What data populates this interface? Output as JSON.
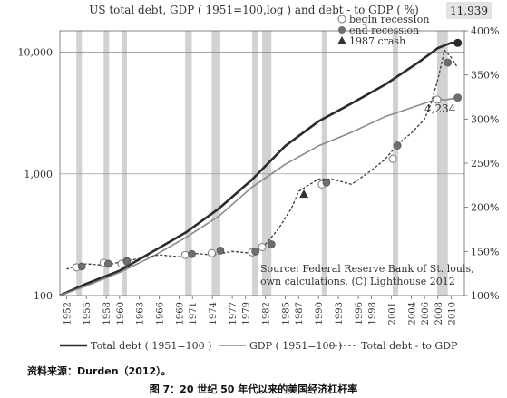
{
  "chart_data": {
    "type": "line",
    "title": "US total debt, GDP ( 1951=100,log ) and debt - to GDP ( %)",
    "peak_label": "11,939",
    "end_label": "4,234",
    "source_text": [
      "Source: Federal Reserve Bank of St. louls,",
      "own calculations. (C) Lighthouse 2012"
    ],
    "left_axis": {
      "scale": "log",
      "ylim": [
        100,
        15000
      ],
      "ticks": [
        100,
        1000,
        10000
      ],
      "tick_labels": [
        "100",
        "1,000",
        "10,000"
      ]
    },
    "right_axis": {
      "scale": "linear",
      "ylim": [
        100,
        400
      ],
      "ticks": [
        100,
        150,
        200,
        250,
        300,
        350,
        400
      ],
      "tick_labels": [
        "100%",
        "150%",
        "200%",
        "250%",
        "300%",
        "350%",
        "400%"
      ]
    },
    "x_axis": {
      "xlim": [
        1951,
        2012
      ],
      "ticks": [
        1952,
        1955,
        1958,
        1960,
        1963,
        1966,
        1969,
        1971,
        1974,
        1977,
        1979,
        1982,
        1985,
        1987,
        1990,
        1993,
        1996,
        1998,
        2001,
        2004,
        2006,
        2008,
        2010
      ]
    },
    "grid_lines_left": [
      1000,
      10000
    ],
    "recessions": [
      [
        1953.5,
        1954.3
      ],
      [
        1957.6,
        1958.3
      ],
      [
        1960.3,
        1961.1
      ],
      [
        1969.9,
        1970.9
      ],
      [
        1973.9,
        1975.2
      ],
      [
        1980.0,
        1980.5
      ],
      [
        1981.5,
        1982.9
      ],
      [
        1990.5,
        1991.2
      ],
      [
        2001.2,
        2001.9
      ],
      [
        2007.9,
        2009.5
      ]
    ],
    "series": [
      {
        "name": "Total debt ( 1951=100 )",
        "axis": "left",
        "style": "solid-thick",
        "color": "#2b2b2b",
        "x": [
          1951,
          1955,
          1960,
          1965,
          1970,
          1975,
          1980,
          1985,
          1990,
          1995,
          2000,
          2005,
          2008,
          2010,
          2011
        ],
        "y": [
          100,
          125,
          160,
          230,
          330,
          520,
          900,
          1700,
          2700,
          3800,
          5400,
          8200,
          10800,
          11939,
          11939
        ]
      },
      {
        "name": "GDP ( 1951=100 )",
        "axis": "left",
        "style": "solid-thin",
        "color": "#8a8a8a",
        "x": [
          1951,
          1955,
          1960,
          1965,
          1970,
          1975,
          1980,
          1985,
          1990,
          1995,
          2000,
          2005,
          2008,
          2009,
          2011
        ],
        "y": [
          100,
          120,
          155,
          210,
          300,
          450,
          780,
          1200,
          1700,
          2200,
          2950,
          3650,
          4150,
          4050,
          4234
        ]
      },
      {
        "name": "Total debt - to GDP",
        "axis": "right",
        "style": "dashed",
        "color": "#3a3a3a",
        "x": [
          1952,
          1955,
          1958,
          1960,
          1963,
          1966,
          1969,
          1971,
          1974,
          1977,
          1980,
          1982,
          1984,
          1986,
          1987,
          1990,
          1992,
          1995,
          1998,
          2000,
          2002,
          2004,
          2006,
          2007,
          2008,
          2009,
          2010,
          2011
        ],
        "y": [
          130,
          136,
          134,
          138,
          142,
          146,
          144,
          148,
          146,
          150,
          148,
          158,
          176,
          200,
          218,
          232,
          232,
          226,
          242,
          254,
          272,
          284,
          300,
          318,
          345,
          378,
          370,
          358
        ]
      }
    ],
    "legend_top": [
      {
        "label": "begln recessIon",
        "marker": "open-circle"
      },
      {
        "label": "end recession",
        "marker": "filled-circle"
      },
      {
        "label": "1987 crash",
        "marker": "triangle"
      }
    ],
    "markers": {
      "begin_recession": [
        [
          1953.5,
          132
        ],
        [
          1957.6,
          137
        ],
        [
          1960.3,
          136
        ],
        [
          1969.9,
          146
        ],
        [
          1973.9,
          148
        ],
        [
          1980.0,
          149
        ],
        [
          1981.5,
          155
        ],
        [
          1990.5,
          226
        ],
        [
          2001.2,
          255
        ],
        [
          2007.9,
          322
        ]
      ],
      "end_recession": [
        [
          1954.3,
          133
        ],
        [
          1958.3,
          136
        ],
        [
          1961.1,
          139
        ],
        [
          1970.9,
          147
        ],
        [
          1975.2,
          151
        ],
        [
          1980.5,
          150
        ],
        [
          1982.9,
          158
        ],
        [
          1991.2,
          228
        ],
        [
          2001.9,
          270
        ],
        [
          2009.5,
          364
        ]
      ],
      "crash": [
        [
          1987.8,
          215
        ]
      ],
      "total_debt_peak": [
        2011,
        11939
      ],
      "gdp_end": [
        2011,
        4234
      ]
    }
  },
  "notes": {
    "source": "资料来源：Durden（2012）。",
    "caption": "图 7：20 世纪 50 年代以来的美国经济杠杆率"
  }
}
